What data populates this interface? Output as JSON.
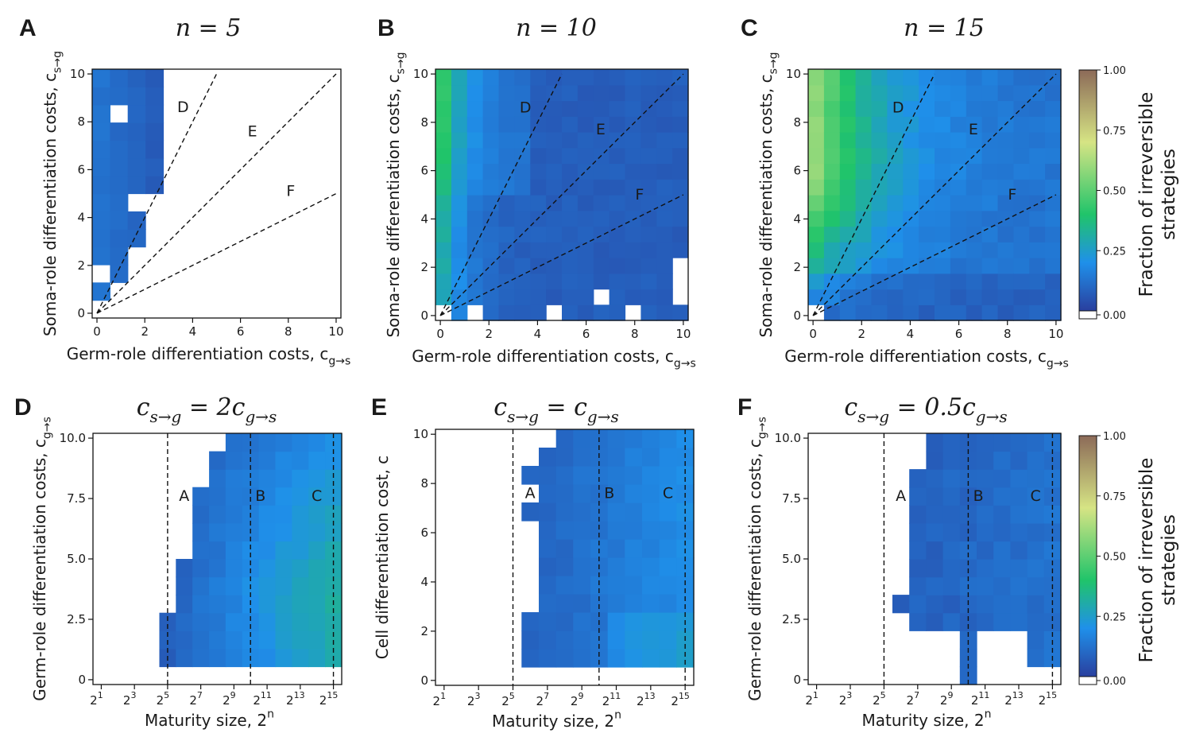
{
  "figure": {
    "colorbar_label": "Fraction of irreversible strategies",
    "colorbar_ticks": [
      "1.00",
      "0.75",
      "0.50",
      "0.25",
      "0.00"
    ],
    "colormap": [
      "#ffffff",
      "#2a3f9e",
      "#1f90ea",
      "#20c46a",
      "#d6e484",
      "#8c6a58"
    ]
  },
  "chart_data": [
    {
      "panel": "A",
      "type": "heatmap",
      "title": "n = 5",
      "xlabel": "Germ-role differentiation costs, c_{g→s}",
      "ylabel": "Soma-role differentiation costs, c_{s→g}",
      "xlim": [
        0,
        10
      ],
      "ylim": [
        0,
        10
      ],
      "xticks": [
        "0",
        "2",
        "4",
        "6",
        "8",
        "10"
      ],
      "yticks": [
        "0",
        "2",
        "4",
        "6",
        "8",
        "10"
      ],
      "lines": [
        {
          "slope": 2,
          "label": "D"
        },
        {
          "slope": 1,
          "label": "E"
        },
        {
          "slope": 0.5,
          "label": "F"
        }
      ],
      "value_summary": "non-zero only for c_{g→s} <= 3 and above line D; values 0.05-0.15 (dark blue); empty (white) elsewhere"
    },
    {
      "panel": "B",
      "type": "heatmap",
      "title": "n = 10",
      "xlabel": "Germ-role differentiation costs, c_{g→s}",
      "ylabel": "Soma-role differentiation costs, c_{s→g}",
      "xlim": [
        0,
        10
      ],
      "ylim": [
        0,
        10
      ],
      "xticks": [
        "0",
        "2",
        "4",
        "6",
        "8",
        "10"
      ],
      "yticks": [
        "0",
        "2",
        "4",
        "6",
        "8",
        "10"
      ],
      "lines": [
        {
          "slope": 2,
          "label": "D"
        },
        {
          "slope": 1,
          "label": "E"
        },
        {
          "slope": 0.5,
          "label": "F"
        }
      ],
      "value_summary": "max about 0.35 at low c_{g→s} and high c_{s→g}; about 0.05-0.1 over most of the domain; a few empty cells near the bottom"
    },
    {
      "panel": "C",
      "type": "heatmap",
      "title": "n = 15",
      "xlabel": "Germ-role differentiation costs, c_{g→s}",
      "ylabel": "Soma-role differentiation costs, c_{s→g}",
      "xlim": [
        0,
        10
      ],
      "ylim": [
        0,
        10
      ],
      "xticks": [
        "0",
        "2",
        "4",
        "6",
        "8",
        "10"
      ],
      "yticks": [
        "0",
        "2",
        "4",
        "6",
        "8",
        "10"
      ],
      "lines": [
        {
          "slope": 2,
          "label": "D"
        },
        {
          "slope": 1,
          "label": "E"
        },
        {
          "slope": 0.5,
          "label": "F"
        }
      ],
      "value_summary": "max about 0.55 at c_{g→s}≈0, c_{s→g}≈10; about 0.35 across the upper-left region; 0.1-0.25 elsewhere"
    },
    {
      "panel": "D",
      "type": "heatmap",
      "title": "c_{s→g} = 2c_{g→s}",
      "xlabel": "Maturity size, 2^n",
      "ylabel": "Germ-role differentiation costs, c_{g→s}",
      "x_exponents": [
        1,
        16
      ],
      "ylim": [
        0,
        10
      ],
      "xticks": [
        "2^1",
        "2^3",
        "2^5",
        "2^7",
        "2^9",
        "2^11",
        "2^13",
        "2^15"
      ],
      "yticks": [
        "0",
        "2.5",
        "5.0",
        "7.5",
        "10.0"
      ],
      "vlines": [
        {
          "n": 5,
          "label": "A"
        },
        {
          "n": 10,
          "label": "B"
        },
        {
          "n": 15,
          "label": "C"
        }
      ],
      "value_summary": "empty for n < 5; starts 0.05 at n≈5; rises to about 0.3 at n=15, c≈2"
    },
    {
      "panel": "E",
      "type": "heatmap",
      "title": "c_{s→g} = c_{g→s}",
      "xlabel": "Maturity size, 2^n",
      "ylabel": "Cell differentiation cost, c",
      "x_exponents": [
        1,
        16
      ],
      "ylim": [
        0,
        10
      ],
      "xticks": [
        "2^1",
        "2^3",
        "2^5",
        "2^7",
        "2^9",
        "2^11",
        "2^13",
        "2^15"
      ],
      "yticks": [
        "0",
        "2",
        "4",
        "6",
        "8",
        "10"
      ],
      "vlines": [
        {
          "n": 5,
          "label": "A"
        },
        {
          "n": 10,
          "label": "B"
        },
        {
          "n": 15,
          "label": "C"
        }
      ],
      "value_summary": "empty for n < 6; values 0.05-0.2, highest near n=15 and c≈2"
    },
    {
      "panel": "F",
      "type": "heatmap",
      "title": "c_{s→g} = 0.5c_{g→s}",
      "xlabel": "Maturity size, 2^n",
      "ylabel": "Germ-role differentiation costs, c_{g→s}",
      "x_exponents": [
        1,
        16
      ],
      "ylim": [
        0,
        10
      ],
      "xticks": [
        "2^1",
        "2^3",
        "2^5",
        "2^7",
        "2^9",
        "2^11",
        "2^13",
        "2^15"
      ],
      "yticks": [
        "0",
        "2.5",
        "5.0",
        "7.5",
        "10.0"
      ],
      "vlines": [
        {
          "n": 5,
          "label": "A"
        },
        {
          "n": 10,
          "label": "B"
        },
        {
          "n": 15,
          "label": "C"
        }
      ],
      "value_summary": "empty for n < 6 and at low costs; values 0.05-0.12 (dark blue)"
    }
  ]
}
